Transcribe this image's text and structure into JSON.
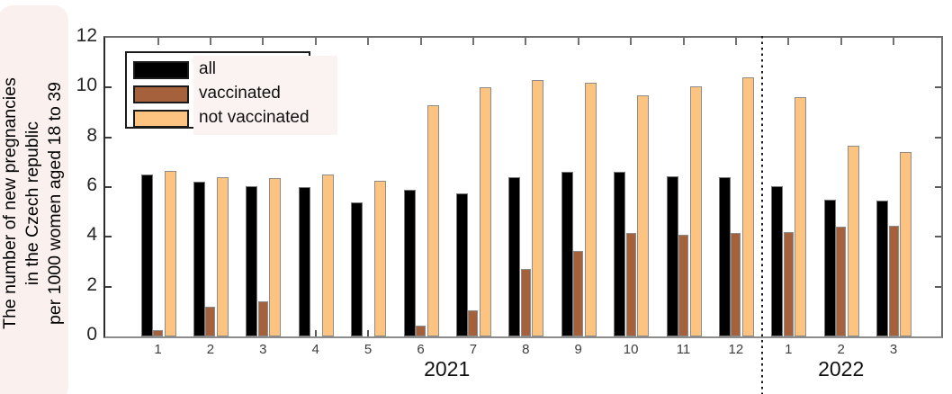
{
  "chart_data": {
    "type": "bar",
    "ylabel_lines": [
      "The number of new pregnancies",
      "in the Czech republic",
      "per 1000 women aged 18 to 39"
    ],
    "ylim": [
      0,
      12
    ],
    "yticks": [
      0,
      2,
      4,
      6,
      8,
      10,
      12
    ],
    "categories": [
      "1",
      "2",
      "3",
      "4",
      "5",
      "6",
      "7",
      "8",
      "9",
      "10",
      "11",
      "12",
      "1",
      "2",
      "3"
    ],
    "year_groups": [
      {
        "label": "2021",
        "start_index": 0,
        "end_index": 11
      },
      {
        "label": "2022",
        "start_index": 12,
        "end_index": 14
      }
    ],
    "separator_after_index": 11,
    "grid": false,
    "legend_position": "top-left",
    "series": [
      {
        "name": "all",
        "color": "#000000",
        "values": [
          6.5,
          6.2,
          6.05,
          6.0,
          5.4,
          5.9,
          5.75,
          6.4,
          6.6,
          6.6,
          6.45,
          6.4,
          6.05,
          5.5,
          5.45
        ]
      },
      {
        "name": "vaccinated",
        "color": "#a5613c",
        "values": [
          0.25,
          1.2,
          1.4,
          0,
          0,
          0.45,
          1.05,
          2.7,
          3.45,
          4.15,
          4.1,
          4.15,
          4.2,
          4.4,
          4.45
        ]
      },
      {
        "name": "not vaccinated",
        "color": "#fcc480",
        "values": [
          6.65,
          6.4,
          6.35,
          6.5,
          6.25,
          9.3,
          10.0,
          10.3,
          10.2,
          9.7,
          10.05,
          10.4,
          9.6,
          7.65,
          7.4
        ]
      }
    ],
    "colors": {
      "frame": "#6e6e6e",
      "tick": "#737373",
      "separator": "#1a1a1a",
      "ylabel_bg": "#faf1ef",
      "legend_text_bg": "#fbf3f1"
    }
  }
}
